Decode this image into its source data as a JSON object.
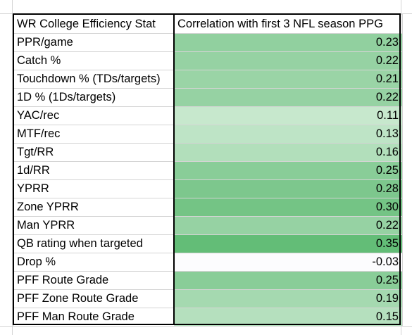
{
  "table": {
    "headers": [
      "WR College Efficiency Stat",
      "Correlation with first 3 NFL season PPG"
    ],
    "rows": [
      {
        "stat": "PPR/game",
        "value": "0.23",
        "color": "#91d09f"
      },
      {
        "stat": "Catch %",
        "value": "0.22",
        "color": "#96d2a3"
      },
      {
        "stat": "Touchdown % (TDs/targets)",
        "value": "0.21",
        "color": "#9ad4a6"
      },
      {
        "stat": "1D % (1Ds/targets)",
        "value": "0.22",
        "color": "#96d2a3"
      },
      {
        "stat": "YAC/rec",
        "value": "0.11",
        "color": "#c7e8cd"
      },
      {
        "stat": "MTF/rec",
        "value": "0.13",
        "color": "#bee4c6"
      },
      {
        "stat": "Tgt/RR",
        "value": "0.16",
        "color": "#b2dfbb"
      },
      {
        "stat": "1d/RR",
        "value": "0.25",
        "color": "#89cd98"
      },
      {
        "stat": "YPRR",
        "value": "0.28",
        "color": "#7dc78d"
      },
      {
        "stat": "Zone YPRR",
        "value": "0.30",
        "color": "#74c485"
      },
      {
        "stat": "Man YPRR",
        "value": "0.22",
        "color": "#96d2a3"
      },
      {
        "stat": "QB rating when targeted",
        "value": "0.35",
        "color": "#63bd77"
      },
      {
        "stat": "Drop %",
        "value": "-0.03",
        "color": "#fcfcfe"
      },
      {
        "stat": "PFF Route Grade",
        "value": "0.25",
        "color": "#89cd98"
      },
      {
        "stat": "PFF Zone Route Grade",
        "value": "0.19",
        "color": "#a5d9b0"
      },
      {
        "stat": "PFF Man Route Grade",
        "value": "0.15",
        "color": "#b5e0be"
      }
    ]
  }
}
